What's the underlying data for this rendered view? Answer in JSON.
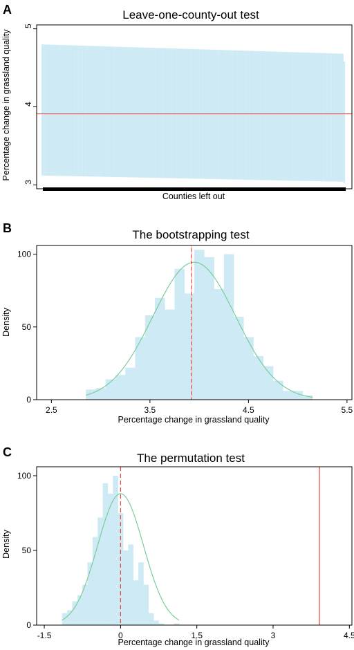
{
  "chart_data": [
    {
      "panel": "A",
      "type": "bar",
      "title": "Leave-one-county-out test",
      "xlabel": "Counties left out",
      "ylabel": "Percentage change in grassland quality",
      "ylim": [
        2.95,
        5.05
      ],
      "yticks": [
        "3",
        "4",
        "5"
      ],
      "reference_line": 3.91,
      "band_upper": {
        "start": 4.8,
        "mid": 4.74,
        "end": 4.68,
        "last": 4.58
      },
      "band_lower": {
        "start": 3.12,
        "mid": 3.08,
        "end": 3.04,
        "last": 3.02
      },
      "n_counties": 200,
      "colors": {
        "band": "#cdeaf5",
        "reference": "#e8413c",
        "axis_bar": "#000000"
      }
    },
    {
      "panel": "B",
      "type": "bar",
      "title": "The bootstrapping test",
      "xlabel": "Percentage change in grassland quality",
      "ylabel": "Density",
      "xlim": [
        2.35,
        5.55
      ],
      "ylim": [
        0,
        106
      ],
      "xticks": [
        "2.5",
        "3.5",
        "4.5",
        "5.5"
      ],
      "yticks": [
        "0",
        "50",
        "100"
      ],
      "bin_start": 2.85,
      "bin_width": 0.1,
      "values": [
        7,
        8,
        14,
        17,
        22,
        43,
        58,
        70,
        62,
        90,
        73,
        103,
        98,
        76,
        100,
        57,
        43,
        30,
        23,
        13,
        6,
        6,
        3
      ],
      "normal": {
        "mean": 3.95,
        "sd": 0.42,
        "peak": 94.5,
        "xrange": [
          2.85,
          5.15
        ]
      },
      "vertical_line": 3.92,
      "colors": {
        "bars": "#cdeaf5",
        "curve": "#7ccc9a",
        "line": "#e8413c"
      }
    },
    {
      "panel": "C",
      "type": "bar",
      "title": "The permutation test",
      "xlabel": "Percentage change in grassland quality",
      "ylabel": "Density",
      "xlim": [
        -1.65,
        4.55
      ],
      "ylim": [
        0,
        106
      ],
      "xticks": [
        "-1.5",
        "0",
        "1.5",
        "3",
        "4.5"
      ],
      "yticks": [
        "0",
        "50",
        "100"
      ],
      "bin_start": -1.15,
      "bin_width": 0.1,
      "values": [
        8,
        10,
        16,
        20,
        27,
        42,
        59,
        72,
        95,
        88,
        100,
        75,
        50,
        54,
        30,
        42,
        27,
        8,
        3,
        1,
        0,
        0,
        1
      ],
      "normal": {
        "mean": 0.0,
        "sd": 0.45,
        "peak": 88,
        "xrange": [
          -1.15,
          1.15
        ]
      },
      "dashed_line": 0,
      "solid_line": 3.91,
      "colors": {
        "bars": "#cdeaf5",
        "curve": "#7ccc9a",
        "line": "#e8413c"
      }
    }
  ]
}
